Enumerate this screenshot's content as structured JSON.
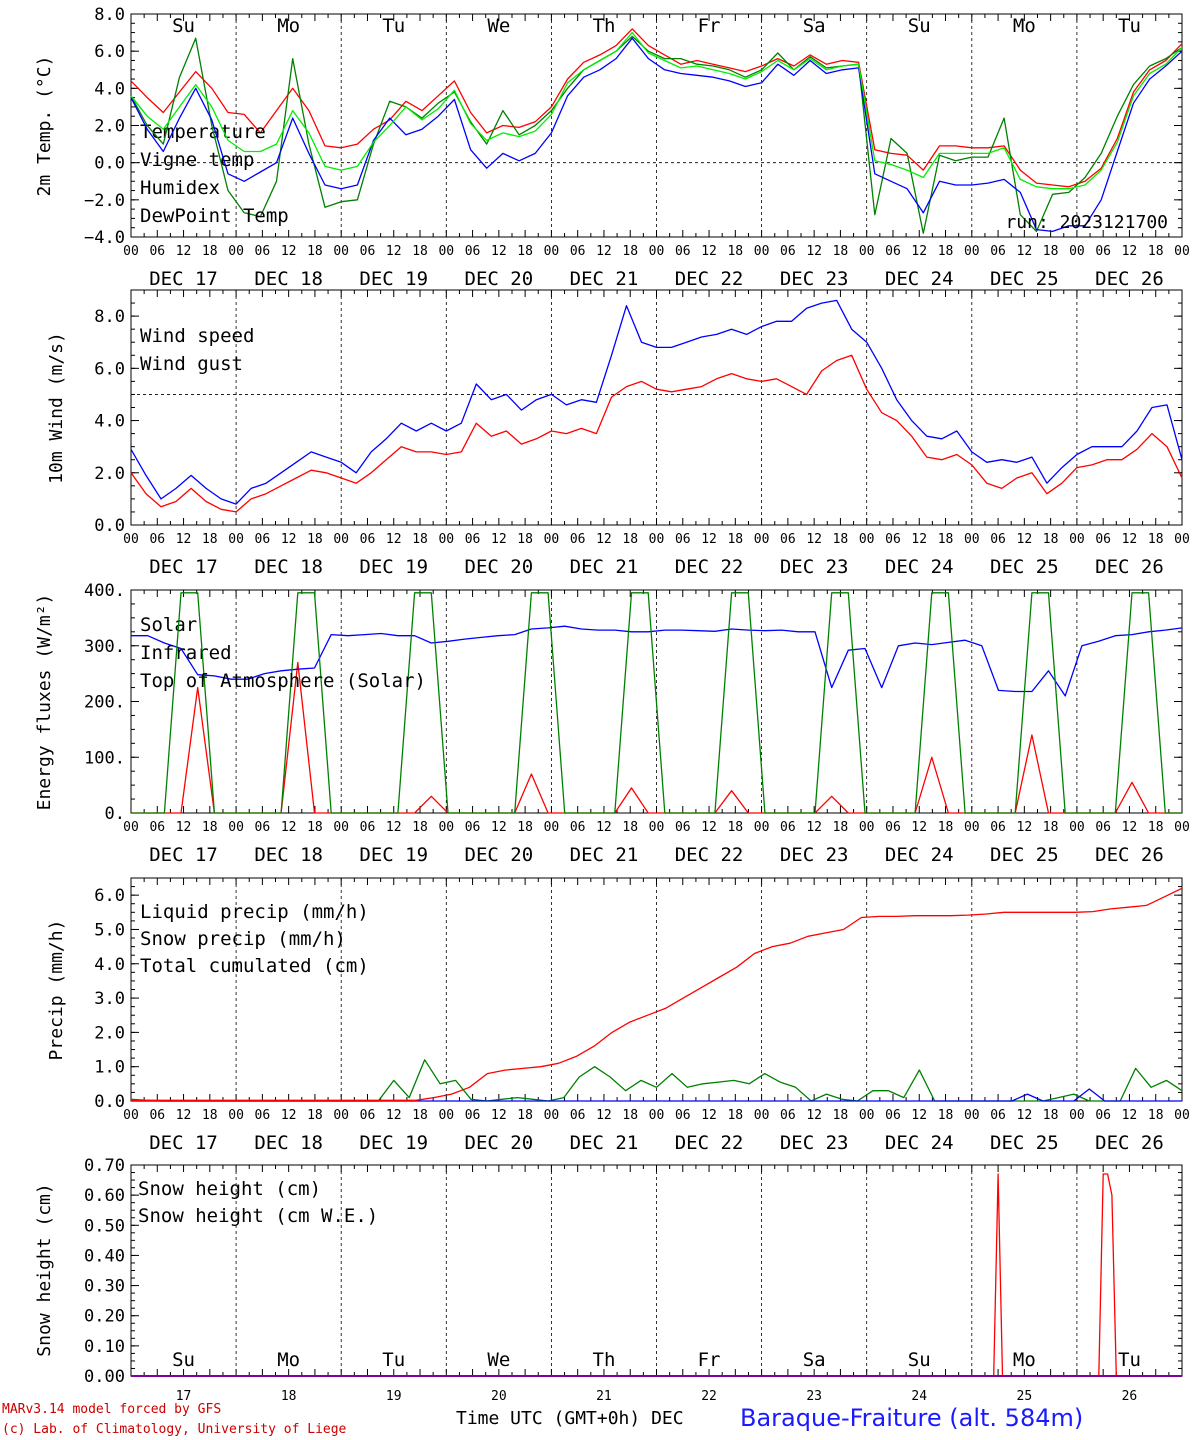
{
  "footer": {
    "credit1": "MARv3.14 model forced by GFS",
    "credit2": "(c) Lab. of Climatology, University of Liege",
    "xaxis_title": "Time UTC (GMT+0h) DEC",
    "station": "Baraque-Fraiture (alt. 584m)"
  },
  "colors": {
    "red": "#ff0000",
    "green": "#008000",
    "blue": "#0000ff",
    "lime": "#00ee00",
    "navy": "#0000cc"
  },
  "hour_labels": [
    "00",
    "06",
    "12",
    "18"
  ],
  "day_dates": [
    "DEC 17",
    "DEC 18",
    "DEC 19",
    "DEC 20",
    "DEC 21",
    "DEC 22",
    "DEC 23",
    "DEC 24",
    "DEC 25",
    "DEC 26"
  ],
  "weekdays": [
    {
      "label": "Su",
      "color": "red"
    },
    {
      "label": "Mo",
      "color": "black"
    },
    {
      "label": "Tu",
      "color": "black"
    },
    {
      "label": "We",
      "color": "black"
    },
    {
      "label": "Th",
      "color": "black"
    },
    {
      "label": "Fr",
      "color": "black"
    },
    {
      "label": "Sa",
      "color": "red"
    },
    {
      "label": "Su",
      "color": "red"
    },
    {
      "label": "Mo",
      "color": "black"
    },
    {
      "label": "Tu",
      "color": "black"
    }
  ],
  "day_numbers": [
    "17",
    "18",
    "19",
    "20",
    "21",
    "22",
    "23",
    "24",
    "25",
    "26"
  ],
  "chart_data": [
    {
      "type": "line",
      "ylabel": "2m Temp. (°C)",
      "ylim": [
        -4,
        8
      ],
      "yticks": [
        "−4.0",
        "−2.0",
        "0.0",
        "2.0",
        "4.0",
        "6.0",
        "8.0"
      ],
      "yticks_val": [
        -4,
        -2,
        0,
        2,
        4,
        6,
        8
      ],
      "ref_line": 0,
      "annotation": "run: 2023121700",
      "x_hours": [
        0,
        3,
        6,
        9,
        12,
        15,
        18,
        21,
        24,
        27,
        30,
        33,
        36,
        39,
        42,
        45,
        48,
        51,
        54,
        57,
        60,
        63,
        66,
        69,
        72,
        75,
        78,
        81,
        84,
        87,
        90,
        93,
        96,
        99,
        102,
        105,
        108,
        111,
        114,
        117,
        120,
        123,
        126,
        129,
        132,
        135,
        138,
        141,
        144,
        147,
        150,
        153,
        156,
        159,
        162,
        165,
        168,
        171,
        174,
        177,
        180,
        183,
        186,
        189,
        192,
        195,
        198,
        201,
        204,
        207,
        210,
        213,
        216,
        219,
        222,
        225,
        228,
        231,
        234,
        237,
        240
      ],
      "series": [
        {
          "name": "Temperature",
          "color": "red",
          "values": [
            4.4,
            3.5,
            2.7,
            3.8,
            4.9,
            4.0,
            2.7,
            2.6,
            1.6,
            2.8,
            4.0,
            2.8,
            0.9,
            0.8,
            1.0,
            1.8,
            2.3,
            3.3,
            2.8,
            3.6,
            4.4,
            2.7,
            1.6,
            2.0,
            1.9,
            2.2,
            3.0,
            4.5,
            5.4,
            5.8,
            6.3,
            7.2,
            6.3,
            5.8,
            5.3,
            5.5,
            5.3,
            5.1,
            4.9,
            5.2,
            5.6,
            5.2,
            5.8,
            5.3,
            5.5,
            5.4,
            0.7,
            0.5,
            0.4,
            -0.4,
            0.9,
            0.9,
            0.8,
            0.8,
            0.9,
            -0.4,
            -1.1,
            -1.2,
            -1.3,
            -1.0,
            -0.3,
            1.3,
            3.8,
            5.0,
            5.5,
            6.4
          ]
        },
        {
          "name": "Vigne temp",
          "color": "green",
          "values": [
            3.6,
            2.0,
            1.0,
            4.6,
            6.7,
            2.0,
            -1.5,
            -2.7,
            -2.9,
            -1.0,
            5.6,
            1.0,
            -2.4,
            -2.1,
            -2.0,
            1.0,
            3.3,
            3.0,
            2.4,
            3.2,
            3.8,
            2.2,
            1.0,
            2.8,
            1.5,
            2.0,
            2.8,
            4.0,
            5.0,
            5.5,
            6.0,
            6.8,
            6.0,
            5.6,
            5.6,
            5.3,
            5.2,
            5.0,
            4.6,
            5.0,
            5.9,
            5.0,
            5.7,
            5.1,
            5.2,
            5.3,
            -2.8,
            1.3,
            0.5,
            -3.8,
            0.4,
            0.1,
            0.3,
            0.3,
            2.4,
            -2.8,
            -3.7,
            -1.7,
            -1.6,
            -0.8,
            0.5,
            2.5,
            4.2,
            5.2,
            5.6,
            6.2
          ]
        },
        {
          "name": "Humidex",
          "color": "blue",
          "values": [
            3.5,
            1.8,
            0.6,
            2.4,
            4.0,
            2.3,
            -0.6,
            -1.0,
            -0.5,
            0.0,
            2.4,
            0.5,
            -1.2,
            -1.4,
            -1.2,
            1.2,
            2.4,
            1.5,
            1.8,
            2.5,
            3.4,
            0.7,
            -0.3,
            0.5,
            0.1,
            0.5,
            1.6,
            3.6,
            4.6,
            5.0,
            5.6,
            6.7,
            5.6,
            5.0,
            4.8,
            4.7,
            4.6,
            4.4,
            4.1,
            4.3,
            5.3,
            4.7,
            5.5,
            4.8,
            5.0,
            5.1,
            -0.6,
            -1.0,
            -1.4,
            -2.7,
            -1.0,
            -1.2,
            -1.2,
            -1.1,
            -0.9,
            -1.6,
            -3.6,
            -3.7,
            -3.4,
            -3.4,
            -2.0,
            0.6,
            3.2,
            4.5,
            5.2,
            6.0
          ]
        },
        {
          "name": "DewPoint Temp",
          "color": "lime",
          "values": [
            3.6,
            2.5,
            1.8,
            3.0,
            4.2,
            3.0,
            1.2,
            0.6,
            0.6,
            1.0,
            2.8,
            1.6,
            -0.2,
            -0.4,
            -0.2,
            1.1,
            2.0,
            3.0,
            2.3,
            2.9,
            3.9,
            2.1,
            1.2,
            1.6,
            1.4,
            1.7,
            2.6,
            4.3,
            5.0,
            5.5,
            6.0,
            7.0,
            5.9,
            5.5,
            5.1,
            5.2,
            5.0,
            4.8,
            4.5,
            4.9,
            5.5,
            5.0,
            5.6,
            5.0,
            5.2,
            5.3,
            0.1,
            -0.1,
            -0.4,
            -0.8,
            0.5,
            0.5,
            0.5,
            0.5,
            0.8,
            -0.9,
            -1.3,
            -1.4,
            -1.4,
            -1.2,
            -0.4,
            1.1,
            3.6,
            4.8,
            5.3,
            6.2
          ]
        }
      ]
    },
    {
      "type": "line",
      "ylabel": "10m Wind (m/s)",
      "ylim": [
        0,
        9
      ],
      "yticks": [
        "0.0",
        "2.0",
        "4.0",
        "6.0",
        "8.0"
      ],
      "yticks_val": [
        0,
        2,
        4,
        6,
        8
      ],
      "ref_line": 5,
      "series": [
        {
          "name": "Wind speed",
          "color": "red",
          "values": [
            2.0,
            1.2,
            0.7,
            0.9,
            1.4,
            0.9,
            0.6,
            0.5,
            1.0,
            1.2,
            1.5,
            1.8,
            2.1,
            2.0,
            1.8,
            1.6,
            2.0,
            2.5,
            3.0,
            2.8,
            2.8,
            2.7,
            2.8,
            3.9,
            3.4,
            3.6,
            3.1,
            3.3,
            3.6,
            3.5,
            3.7,
            3.5,
            4.9,
            5.3,
            5.5,
            5.2,
            5.1,
            5.2,
            5.3,
            5.6,
            5.8,
            5.6,
            5.5,
            5.6,
            5.3,
            5.0,
            5.9,
            6.3,
            6.5,
            5.2,
            4.3,
            4.0,
            3.4,
            2.6,
            2.5,
            2.7,
            2.3,
            1.6,
            1.4,
            1.8,
            2.0,
            1.2,
            1.6,
            2.2,
            2.3,
            2.5,
            2.5,
            2.9,
            3.5,
            3.0,
            1.8
          ]
        },
        {
          "name": "Wind gust",
          "color": "blue",
          "values": [
            2.9,
            1.9,
            1.0,
            1.4,
            1.9,
            1.4,
            1.0,
            0.8,
            1.4,
            1.6,
            2.0,
            2.4,
            2.8,
            2.6,
            2.4,
            2.0,
            2.8,
            3.3,
            3.9,
            3.6,
            3.9,
            3.6,
            3.9,
            5.4,
            4.8,
            5.0,
            4.4,
            4.8,
            5.0,
            4.6,
            4.8,
            4.7,
            6.5,
            8.4,
            7.0,
            6.8,
            6.8,
            7.0,
            7.2,
            7.3,
            7.5,
            7.3,
            7.6,
            7.8,
            7.8,
            8.3,
            8.5,
            8.6,
            7.5,
            7.0,
            6.0,
            4.8,
            4.0,
            3.4,
            3.3,
            3.6,
            2.8,
            2.4,
            2.5,
            2.4,
            2.6,
            1.6,
            2.2,
            2.7,
            3.0,
            3.0,
            3.0,
            3.6,
            4.5,
            4.6,
            2.5
          ]
        }
      ]
    },
    {
      "type": "line",
      "ylabel": "Energy fluxes (W/m²)",
      "ylim": [
        0,
        400
      ],
      "yticks": [
        "0.",
        "100.",
        "200.",
        "300.",
        "400."
      ],
      "yticks_val": [
        0,
        100,
        200,
        300,
        400
      ],
      "series": [
        {
          "name": "Solar",
          "color": "red",
          "values": [
            0,
            0,
            0,
            0,
            225,
            0,
            0,
            0,
            0,
            0,
            270,
            0,
            0,
            0,
            0,
            0,
            0,
            0,
            30,
            0,
            0,
            0,
            0,
            0,
            70,
            0,
            0,
            0,
            0,
            0,
            45,
            0,
            0,
            0,
            0,
            0,
            40,
            0,
            0,
            0,
            0,
            0,
            30,
            0,
            0,
            0,
            0,
            0,
            100,
            0,
            0,
            0,
            0,
            0,
            140,
            0,
            0,
            0,
            0,
            0,
            55,
            0,
            0,
            0
          ]
        },
        {
          "name": "Infrared",
          "color": "blue",
          "values": [
            318,
            318,
            305,
            295,
            248,
            246,
            240,
            240,
            250,
            255,
            258,
            260,
            320,
            318,
            320,
            322,
            318,
            318,
            305,
            308,
            312,
            315,
            318,
            320,
            330,
            332,
            335,
            330,
            328,
            328,
            325,
            325,
            328,
            328,
            327,
            326,
            330,
            328,
            327,
            328,
            325,
            325,
            225,
            292,
            295,
            225,
            300,
            305,
            302,
            306,
            310,
            300,
            220,
            218,
            218,
            255,
            210,
            300,
            308,
            318,
            320,
            325,
            328,
            332
          ]
        },
        {
          "name": "Top of Atmosphere (Solar)",
          "color": "green",
          "values": [
            0,
            0,
            0,
            395,
            395,
            0,
            0,
            0,
            0,
            0,
            395,
            395,
            0,
            0,
            0,
            0,
            0,
            395,
            395,
            0,
            0,
            0,
            0,
            0,
            395,
            395,
            0,
            0,
            0,
            0,
            395,
            395,
            0,
            0,
            0,
            0,
            395,
            395,
            0,
            0,
            0,
            0,
            395,
            395,
            0,
            0,
            0,
            0,
            395,
            395,
            0,
            0,
            0,
            0,
            395,
            395,
            0,
            0,
            0,
            0,
            395,
            395,
            0,
            0
          ]
        }
      ]
    },
    {
      "type": "line",
      "ylabel": "Precip (mm/h)",
      "ylim": [
        0,
        6.5
      ],
      "yticks": [
        "0.0",
        "1.0",
        "2.0",
        "3.0",
        "4.0",
        "5.0",
        "6.0"
      ],
      "yticks_val": [
        0,
        1,
        2,
        3,
        4,
        5,
        6
      ],
      "series": [
        {
          "name": "Liquid precip (mm/h)",
          "color": "green",
          "values": [
            0.05,
            0.02,
            0,
            0,
            0,
            0,
            0,
            0,
            0,
            0,
            0,
            0,
            0,
            0,
            0,
            0,
            0,
            0.6,
            0.1,
            1.2,
            0.5,
            0.6,
            0.05,
            0,
            0.05,
            0.1,
            0.05,
            0,
            0.1,
            0.7,
            1.0,
            0.7,
            0.3,
            0.6,
            0.4,
            0.8,
            0.4,
            0.5,
            0.55,
            0.6,
            0.5,
            0.8,
            0.55,
            0.4,
            0.0,
            0.2,
            0.05,
            0.0,
            0.3,
            0.3,
            0.1,
            0.9,
            0.0,
            0,
            0,
            0,
            0,
            0,
            0,
            0,
            0.1,
            0.2,
            0.0,
            0,
            0,
            0.95,
            0.4,
            0.6,
            0.3
          ]
        },
        {
          "name": "Snow precip (mm/h)",
          "color": "blue",
          "values": [
            0,
            0,
            0,
            0,
            0,
            0,
            0,
            0,
            0,
            0,
            0,
            0,
            0,
            0,
            0,
            0,
            0,
            0,
            0,
            0,
            0,
            0,
            0,
            0,
            0,
            0,
            0,
            0,
            0,
            0,
            0,
            0,
            0,
            0,
            0,
            0,
            0,
            0,
            0,
            0,
            0,
            0,
            0,
            0,
            0,
            0,
            0,
            0,
            0,
            0,
            0,
            0,
            0,
            0,
            0,
            0,
            0,
            0,
            0.2,
            0,
            0,
            0,
            0.35,
            0,
            0,
            0,
            0,
            0,
            0
          ]
        },
        {
          "name": "Total cumulated (cm)",
          "color": "red",
          "values": [
            0.02,
            0.02,
            0.02,
            0.02,
            0.02,
            0.02,
            0.02,
            0.02,
            0.02,
            0.02,
            0.02,
            0.02,
            0.02,
            0.02,
            0.02,
            0.02,
            0.02,
            0.1,
            0.2,
            0.4,
            0.8,
            0.9,
            0.95,
            1.0,
            1.1,
            1.3,
            1.6,
            2.0,
            2.3,
            2.5,
            2.7,
            3.0,
            3.3,
            3.6,
            3.9,
            4.3,
            4.5,
            4.6,
            4.8,
            4.9,
            5.0,
            5.35,
            5.38,
            5.38,
            5.4,
            5.4,
            5.4,
            5.42,
            5.45,
            5.5,
            5.5,
            5.5,
            5.5,
            5.5,
            5.52,
            5.6,
            5.65,
            5.7,
            5.95,
            6.2
          ]
        }
      ]
    },
    {
      "type": "line",
      "ylabel": "Snow height (cm)",
      "ylim": [
        0,
        0.7
      ],
      "yticks": [
        "0.00",
        "0.10",
        "0.20",
        "0.30",
        "0.40",
        "0.50",
        "0.60",
        "0.70"
      ],
      "yticks_val": [
        0,
        0.1,
        0.2,
        0.3,
        0.4,
        0.5,
        0.6,
        0.7
      ],
      "series": [
        {
          "name": "Snow height (cm)",
          "color": "red",
          "x_hours": [
            0,
            196,
            197,
            198,
            199,
            200,
            220,
            221,
            222,
            223,
            224,
            225,
            240
          ],
          "values": [
            0,
            0,
            0,
            0.67,
            0,
            0,
            0,
            0,
            0.67,
            0.67,
            0.6,
            0,
            0
          ]
        },
        {
          "name": "Snow height (cm W.E.)",
          "color": "blue",
          "x_hours": [
            0,
            240
          ],
          "values": [
            0,
            0
          ]
        }
      ]
    }
  ]
}
